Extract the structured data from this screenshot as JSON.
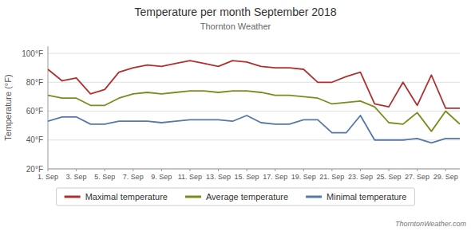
{
  "chart_data": {
    "type": "line",
    "title": "Temperature per month September 2018",
    "subtitle": "Thornton Weather",
    "annotations": [
      "ThorntonWeather.com"
    ],
    "ylabel": "Temperature (°F)",
    "x": [
      1,
      2,
      3,
      4,
      5,
      6,
      7,
      8,
      9,
      10,
      11,
      12,
      13,
      14,
      15,
      16,
      17,
      18,
      19,
      20,
      21,
      22,
      23,
      24,
      25,
      26,
      27,
      28,
      29,
      30
    ],
    "xlim": [
      1,
      30
    ],
    "xticks": [
      {
        "value": 1,
        "label": "1. Sep"
      },
      {
        "value": 3,
        "label": "3. Sep"
      },
      {
        "value": 5,
        "label": "5. Sep"
      },
      {
        "value": 7,
        "label": "7. Sep"
      },
      {
        "value": 9,
        "label": "9. Sep"
      },
      {
        "value": 11,
        "label": "11. Sep"
      },
      {
        "value": 13,
        "label": "13. Sep"
      },
      {
        "value": 15,
        "label": "15. Sep"
      },
      {
        "value": 17,
        "label": "17. Sep"
      },
      {
        "value": 19,
        "label": "19. Sep"
      },
      {
        "value": 21,
        "label": "21. Sep"
      },
      {
        "value": 23,
        "label": "23. Sep"
      },
      {
        "value": 25,
        "label": "25. Sep"
      },
      {
        "value": 27,
        "label": "27. Sep"
      },
      {
        "value": 29,
        "label": "29. Sep"
      }
    ],
    "ylim": [
      20,
      105
    ],
    "yticks": [
      {
        "value": 20,
        "label": "20°F"
      },
      {
        "value": 40,
        "label": "40°F"
      },
      {
        "value": 60,
        "label": "60°F"
      },
      {
        "value": 80,
        "label": "80°F"
      },
      {
        "value": 100,
        "label": "100°F"
      }
    ],
    "grid": "y",
    "legend": "bottom",
    "series": [
      {
        "name": "Maximal temperature",
        "color": "#b03030",
        "values": [
          89,
          81,
          83,
          72,
          75,
          87,
          90,
          92,
          91,
          93,
          95,
          93,
          91,
          95,
          94,
          91,
          90,
          90,
          89,
          80,
          80,
          84,
          87,
          65,
          63,
          80,
          64,
          85,
          62,
          62
        ]
      },
      {
        "name": "Average temperature",
        "color": "#7d8b1e",
        "values": [
          71,
          69,
          69,
          64,
          64,
          69,
          72,
          73,
          72,
          73,
          74,
          74,
          73,
          74,
          74,
          73,
          71,
          71,
          70,
          69,
          65,
          66,
          67,
          63,
          52,
          51,
          59,
          46,
          60,
          51
        ]
      },
      {
        "name": "Minimal temperature",
        "color": "#5577aa",
        "values": [
          53,
          56,
          56,
          51,
          51,
          53,
          53,
          53,
          52,
          53,
          54,
          54,
          54,
          53,
          57,
          52,
          51,
          51,
          54,
          54,
          45,
          45,
          57,
          40,
          40,
          40,
          41,
          38,
          41,
          41
        ]
      }
    ]
  }
}
